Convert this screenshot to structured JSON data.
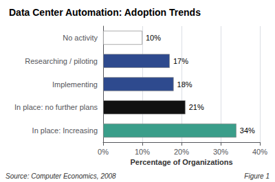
{
  "chart_data": {
    "type": "bar",
    "orientation": "horizontal",
    "title": "Data Center Automation: Adoption Trends",
    "categories": [
      "In place: Increasing",
      "In place: no further plans",
      "Implementing",
      "Researching / piloting",
      "No activity"
    ],
    "values": [
      34,
      21,
      18,
      17,
      10
    ],
    "value_labels": [
      "34%",
      "21%",
      "18%",
      "17%",
      "10%"
    ],
    "data_labels": true,
    "colors": [
      "#3a9e8a",
      "#111111",
      "#2e4a8e",
      "#2e4a8e",
      "#ffffff"
    ],
    "xlabel": "Percentage of Organizations",
    "xlim": [
      0,
      40
    ],
    "xticks": [
      {
        "value": 0,
        "label": "0%"
      },
      {
        "value": 10,
        "label": "10%"
      },
      {
        "value": 20,
        "label": "20%"
      },
      {
        "value": 30,
        "label": "30%"
      },
      {
        "value": 40,
        "label": "40%"
      }
    ],
    "grid": true,
    "annotations": [
      "Source: Computer Economics, 2008",
      "Figure 1"
    ]
  }
}
